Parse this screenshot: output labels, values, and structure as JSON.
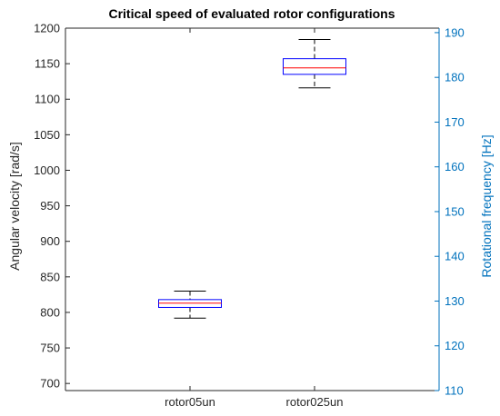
{
  "chart_data": {
    "type": "box",
    "title": "Critical speed of evaluated rotor configurations",
    "categories": [
      "rotor05un",
      "rotor025un"
    ],
    "ylabel_left": "Angular velocity [rad/s]",
    "ylabel_right": "Rotational frequency [Hz]",
    "ylim_left": [
      690,
      1200
    ],
    "ylim_right": [
      110,
      191
    ],
    "yticks_left": [
      "700",
      "750",
      "800",
      "850",
      "900",
      "950",
      "1000",
      "1050",
      "1100",
      "1150",
      "1200"
    ],
    "yticks_right": [
      "110",
      "120",
      "130",
      "140",
      "150",
      "160",
      "170",
      "180",
      "190"
    ],
    "boxes": [
      {
        "category": "rotor05un",
        "whisker_low": 792,
        "q1": 807,
        "median": 813,
        "q3": 818,
        "whisker_high": 830
      },
      {
        "category": "rotor025un",
        "whisker_low": 1116,
        "q1": 1135,
        "median": 1144,
        "q3": 1157,
        "whisker_high": 1184
      }
    ],
    "grid": false,
    "colors": {
      "box": "#0000ff",
      "median": "#ff0000",
      "whisker": "#000000",
      "right_axis": "#0072bd",
      "axis": "#262626"
    }
  }
}
